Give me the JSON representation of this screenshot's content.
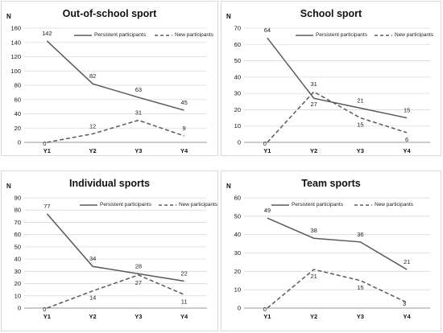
{
  "legend": {
    "persistent": "Persistent participants",
    "new": "New participants"
  },
  "chart_data": [
    {
      "type": "line",
      "title": "Out-of-school sport",
      "ylabel": "N",
      "categories": [
        "Y1",
        "Y2",
        "Y3",
        "Y4"
      ],
      "ylim": [
        0,
        160
      ],
      "yticks": [
        "0",
        "20",
        "40",
        "60",
        "80",
        "100",
        "120",
        "140",
        "160"
      ],
      "grid": true,
      "legend_position": "top-right",
      "series": [
        {
          "name": "Persistent participants",
          "style": "solid",
          "values": [
            142,
            82,
            63,
            45
          ],
          "labels": [
            "142",
            "82",
            "63",
            "45"
          ]
        },
        {
          "name": "New participants",
          "style": "dashed",
          "values": [
            0,
            12,
            31,
            9
          ],
          "labels": [
            "0",
            "12",
            "31",
            "9"
          ]
        }
      ]
    },
    {
      "type": "line",
      "title": "School sport",
      "ylabel": "N",
      "categories": [
        "Y1",
        "Y2",
        "Y3",
        "Y4"
      ],
      "ylim": [
        0,
        70
      ],
      "yticks": [
        "0",
        "10",
        "20",
        "30",
        "40",
        "50",
        "60",
        "70"
      ],
      "grid": true,
      "legend_position": "top-right",
      "series": [
        {
          "name": "Persistent participants",
          "style": "solid",
          "values": [
            64,
            27,
            21,
            15
          ],
          "labels": [
            "64",
            "27",
            "21",
            "15"
          ]
        },
        {
          "name": "New participants",
          "style": "dashed",
          "values": [
            0,
            31,
            15,
            6
          ],
          "labels": [
            "0",
            "31",
            "15",
            "6"
          ]
        }
      ]
    },
    {
      "type": "line",
      "title": "Individual sports",
      "ylabel": "N",
      "categories": [
        "Y1",
        "Y2",
        "Y3",
        "Y4"
      ],
      "ylim": [
        0,
        90
      ],
      "yticks": [
        "0",
        "10",
        "20",
        "30",
        "40",
        "50",
        "60",
        "70",
        "80",
        "90"
      ],
      "grid": true,
      "legend_position": "top-right",
      "series": [
        {
          "name": "Persistent participants",
          "style": "solid",
          "values": [
            77,
            34,
            28,
            22
          ],
          "labels": [
            "77",
            "34",
            "28",
            "22"
          ]
        },
        {
          "name": "New participants",
          "style": "dashed",
          "values": [
            0,
            14,
            27,
            11
          ],
          "labels": [
            "0",
            "14",
            "27",
            "11"
          ]
        }
      ]
    },
    {
      "type": "line",
      "title": "Team sports",
      "ylabel": "N",
      "categories": [
        "Y1",
        "Y2",
        "Y3",
        "Y4"
      ],
      "ylim": [
        0,
        60
      ],
      "yticks": [
        "0",
        "10",
        "20",
        "30",
        "40",
        "50",
        "60"
      ],
      "grid": true,
      "legend_position": "top-right",
      "series": [
        {
          "name": "Persistent participants",
          "style": "solid",
          "values": [
            49,
            38,
            36,
            21
          ],
          "labels": [
            "49",
            "38",
            "36",
            "21"
          ]
        },
        {
          "name": "New participants",
          "style": "dashed",
          "values": [
            0,
            21,
            15,
            3
          ],
          "labels": [
            "0",
            "21",
            "15",
            "3"
          ]
        }
      ]
    }
  ]
}
